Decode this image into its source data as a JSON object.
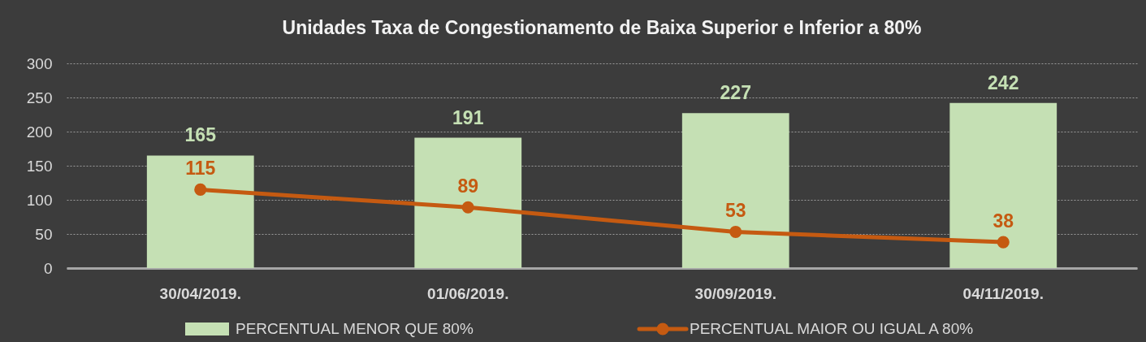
{
  "chart_data": {
    "type": "bar",
    "title": "Unidades Taxa de Congestionamento de Baixa Superior e Inferior a 80%",
    "categories": [
      "30/04/2019.",
      "01/06/2019.",
      "30/09/2019.",
      "04/11/2019."
    ],
    "series": [
      {
        "name": "PERCENTUAL MENOR QUE 80%",
        "color": "#c5e0b4",
        "values": [
          165,
          191,
          227,
          242
        ]
      },
      {
        "name": "PERCENTUAL MAIOR OU IGUAL A 80%",
        "type": "line",
        "color": "#c55a11",
        "values": [
          115,
          89,
          53,
          38
        ]
      }
    ],
    "ylim": [
      0,
      300
    ],
    "yticks": [
      0,
      50,
      100,
      150,
      200,
      250,
      300
    ],
    "grid": "y",
    "legend": "bottom",
    "marker": "circle",
    "data_labels": true
  }
}
